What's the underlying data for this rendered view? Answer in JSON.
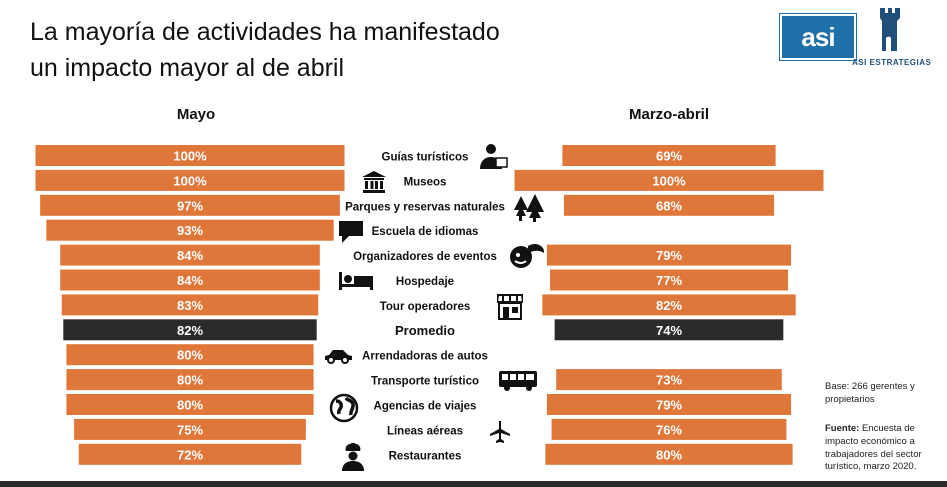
{
  "title": {
    "line1": "La mayoría de actividades ha manifestado",
    "line2": "un impacto mayor al de abril"
  },
  "logo": {
    "badge": "asi",
    "name": "ASI ESTRATEGIAS"
  },
  "colors": {
    "bar": "#e0773a",
    "average_bar": "#2b2b2b",
    "bar_text": "#ffffff"
  },
  "chart_data": {
    "type": "bar",
    "title": "La mayoría de actividades ha manifestado un impacto mayor al de abril",
    "orientation": "horizontal-butterfly",
    "unit": "%",
    "categories": [
      "Guías turísticos",
      "Museos",
      "Parques y reservas naturales",
      "Escuela de idiomas",
      "Organizadores de eventos",
      "Hospedaje",
      "Tour operadores",
      "Promedio",
      "Arrendadoras de autos",
      "Transporte turístico",
      "Agencias de viajes",
      "Líneas aéreas",
      "Restaurantes"
    ],
    "icons": [
      "tour-guide-icon",
      "museum-icon",
      "trees-icon",
      "speech-bubble-icon",
      "event-organizer-icon",
      "bed-icon",
      "storefront-icon",
      "",
      "car-icon",
      "bus-icon",
      "globe-icon",
      "airplane-icon",
      "chef-icon"
    ],
    "highlight_category": "Promedio",
    "series": [
      {
        "name": "Mayo",
        "values": [
          100,
          100,
          97,
          93,
          84,
          84,
          83,
          82,
          80,
          80,
          80,
          75,
          72
        ],
        "labels": [
          "100%",
          "100%",
          "97%",
          "93%",
          "84%",
          "84%",
          "83%",
          "82%",
          "80%",
          "80%",
          "80%",
          "75%",
          "72%"
        ]
      },
      {
        "name": "Marzo-abril",
        "values": [
          69,
          100,
          68,
          null,
          79,
          77,
          82,
          74,
          null,
          73,
          79,
          76,
          80
        ],
        "labels": [
          "69%",
          "100%",
          "68%",
          "",
          "79%",
          "77%",
          "82%",
          "74%",
          "",
          "73%",
          "79%",
          "76%",
          "80%"
        ]
      }
    ],
    "xlim": [
      0,
      100
    ]
  },
  "notes": {
    "base": "Base: 266 gerentes y propietarios",
    "source_label": "Fuente:",
    "source_text": " Encuesta de impacto económico a trabajadores del sector turístico, marzo 2020."
  }
}
